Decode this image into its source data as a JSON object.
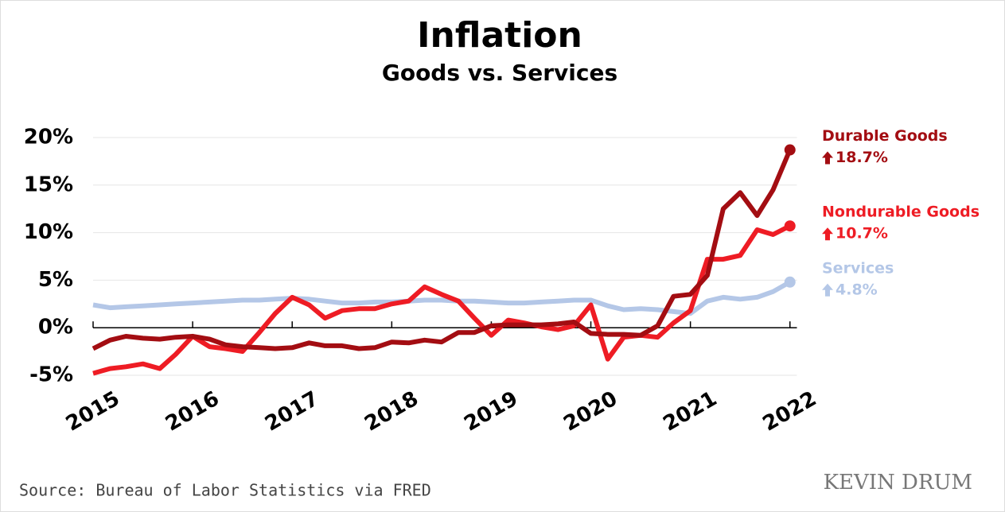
{
  "chart_data": {
    "type": "line",
    "title": "Inflation",
    "subtitle": "Goods vs. Services",
    "source": "Source: Bureau of Labor Statistics via FRED",
    "watermark": "KEVIN DRUM",
    "x": [
      2015,
      2015.17,
      2015.33,
      2015.5,
      2015.67,
      2015.83,
      2016,
      2016.17,
      2016.33,
      2016.5,
      2016.67,
      2016.83,
      2017,
      2017.17,
      2017.33,
      2017.5,
      2017.67,
      2017.83,
      2018,
      2018.17,
      2018.33,
      2018.5,
      2018.67,
      2018.83,
      2019,
      2019.17,
      2019.33,
      2019.5,
      2019.67,
      2019.83,
      2020,
      2020.17,
      2020.33,
      2020.5,
      2020.67,
      2020.83,
      2021,
      2021.17,
      2021.33,
      2021.5,
      2021.67,
      2021.83,
      2022
    ],
    "xlim": [
      2015,
      2022.07
    ],
    "xticks": [
      2015,
      2016,
      2017,
      2018,
      2019,
      2020,
      2021,
      2022
    ],
    "ylim": [
      -5.5,
      21
    ],
    "yticks": [
      {
        "value": -5,
        "label": "-5%"
      },
      {
        "value": 0,
        "label": "0%"
      },
      {
        "value": 5,
        "label": "5%"
      },
      {
        "value": 10,
        "label": "10%"
      },
      {
        "value": 15,
        "label": "15%"
      },
      {
        "value": 20,
        "label": "20%"
      }
    ],
    "grid": true,
    "series": [
      {
        "name": "Durable Goods",
        "color": "#a30d12",
        "values": [
          -2.2,
          -1.3,
          -0.9,
          -1.1,
          -1.2,
          -1.0,
          -0.9,
          -1.2,
          -1.8,
          -2.0,
          -2.1,
          -2.2,
          -2.1,
          -1.6,
          -1.9,
          -1.9,
          -2.2,
          -2.1,
          -1.5,
          -1.6,
          -1.3,
          -1.5,
          -0.5,
          -0.5,
          0.2,
          0.3,
          0.3,
          0.3,
          0.4,
          0.6,
          -0.6,
          -0.7,
          -0.7,
          -0.8,
          0.2,
          3.3,
          3.5,
          5.5,
          12.5,
          14.2,
          11.8,
          14.5,
          18.7
        ],
        "value_labels": [
          null,
          null,
          null,
          null,
          null,
          null,
          null,
          null,
          null,
          null,
          null,
          null,
          null,
          null,
          null,
          null,
          null,
          null,
          null,
          null,
          null,
          null,
          null,
          null,
          null,
          null,
          null,
          null,
          null,
          null,
          null,
          null,
          null,
          null,
          null,
          null,
          null,
          null,
          null,
          null,
          null,
          null,
          "18.7%"
        ]
      },
      {
        "name": "Nondurable Goods",
        "color": "#ee1c24",
        "values": [
          -4.8,
          -4.3,
          -4.1,
          -3.8,
          -4.3,
          -2.8,
          -0.9,
          -2.0,
          -2.2,
          -2.5,
          -0.5,
          1.5,
          3.2,
          2.4,
          1.0,
          1.8,
          2.0,
          2.0,
          2.5,
          2.8,
          4.3,
          3.5,
          2.8,
          1.0,
          -0.8,
          0.8,
          0.5,
          0.1,
          -0.2,
          0.2,
          2.4,
          -3.3,
          -1.0,
          -0.8,
          -1.0,
          0.5,
          1.8,
          7.2,
          7.2,
          7.6,
          10.3,
          9.8,
          10.7
        ],
        "value_labels": [
          null,
          null,
          null,
          null,
          null,
          null,
          null,
          null,
          null,
          null,
          null,
          null,
          null,
          null,
          null,
          null,
          null,
          null,
          null,
          null,
          null,
          null,
          null,
          null,
          null,
          null,
          null,
          null,
          null,
          null,
          null,
          null,
          null,
          null,
          null,
          null,
          null,
          null,
          null,
          null,
          null,
          null,
          "10.7%"
        ]
      },
      {
        "name": "Services",
        "color": "#b4c7e7",
        "values": [
          2.4,
          2.1,
          2.2,
          2.3,
          2.4,
          2.5,
          2.6,
          2.7,
          2.8,
          2.9,
          2.9,
          3.0,
          3.1,
          3.0,
          2.8,
          2.6,
          2.6,
          2.7,
          2.7,
          2.8,
          2.9,
          2.9,
          2.8,
          2.8,
          2.7,
          2.6,
          2.6,
          2.7,
          2.8,
          2.9,
          2.9,
          2.3,
          1.9,
          2.0,
          1.9,
          1.7,
          1.5,
          2.8,
          3.2,
          3.0,
          3.2,
          3.8,
          4.8
        ],
        "value_labels": [
          null,
          null,
          null,
          null,
          null,
          null,
          null,
          null,
          null,
          null,
          null,
          null,
          null,
          null,
          null,
          null,
          null,
          null,
          null,
          null,
          null,
          null,
          null,
          null,
          null,
          null,
          null,
          null,
          null,
          null,
          null,
          null,
          null,
          null,
          null,
          null,
          null,
          null,
          null,
          null,
          null,
          null,
          "4.8%"
        ]
      }
    ]
  }
}
